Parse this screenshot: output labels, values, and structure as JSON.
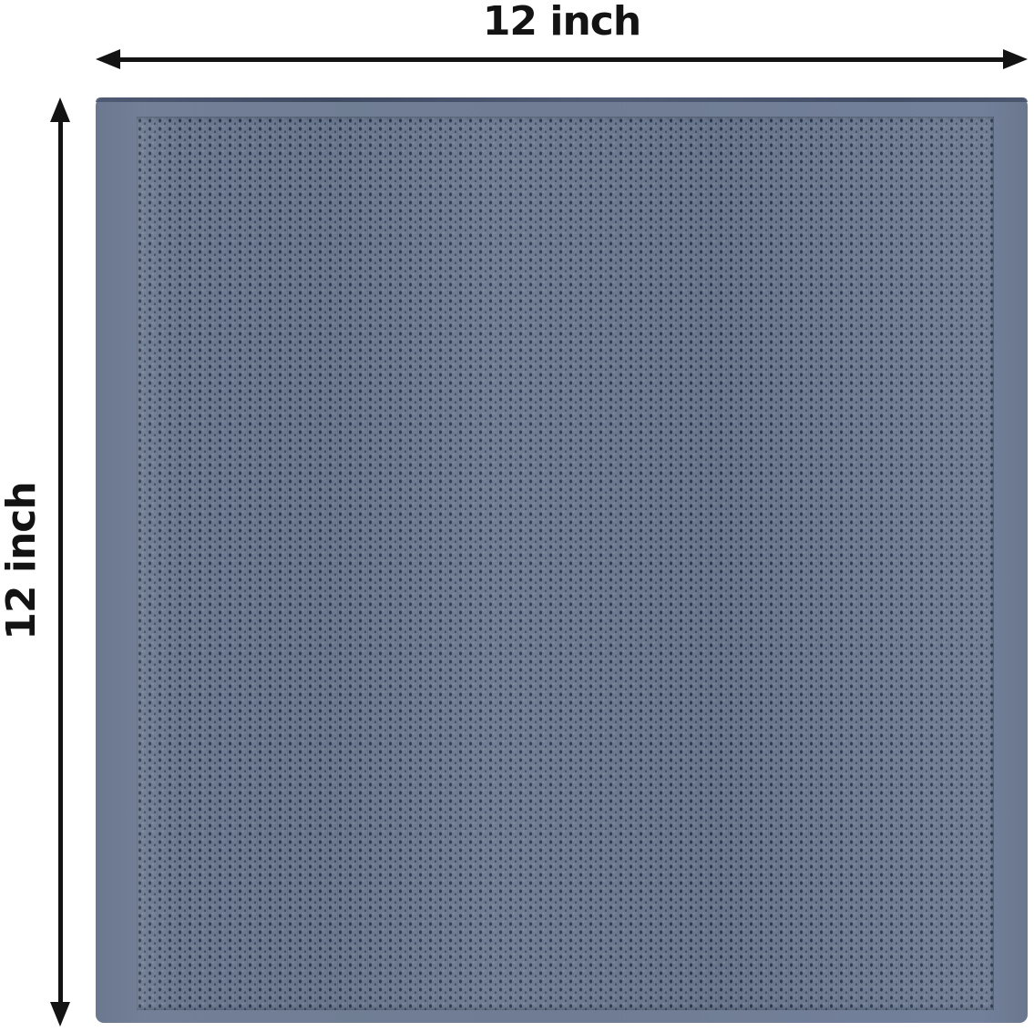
{
  "labels": {
    "width": "12 inch",
    "height": "12 inch"
  },
  "product": {
    "name": "waffle-weave towel swatch",
    "shape": "square",
    "colors": {
      "fabric_base": "#6d7a90",
      "fabric_dot_dark": "#2c3a54",
      "fabric_dot_mid": "#404e68",
      "fabric_edge_band": "#6f7c93",
      "hem_line": "#3c4860",
      "arrow_and_text": "#131313",
      "background": "#ffffff"
    }
  }
}
